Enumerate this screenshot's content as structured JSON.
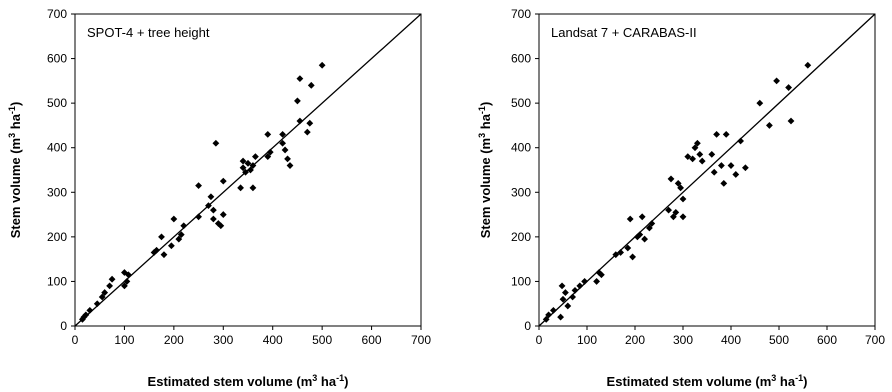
{
  "chart_data": [
    {
      "type": "scatter",
      "title": "SPOT-4 + tree height",
      "xlabel": "Estimated stem volume (m",
      "xlabel_sup": "3",
      "xlabel_tail": " ha",
      "xlabel_sup2": "-1",
      "xlabel_close": ")",
      "ylabel": "Stem volume (m",
      "ylabel_sup": "3",
      "ylabel_tail": " ha",
      "ylabel_sup2": "-1",
      "ylabel_close": ")",
      "xlim": [
        0,
        700
      ],
      "ylim": [
        0,
        700
      ],
      "xticks": [
        "0",
        "100",
        "200",
        "300",
        "400",
        "500",
        "600",
        "700"
      ],
      "yticks": [
        "0",
        "100",
        "200",
        "300",
        "400",
        "500",
        "600",
        "700"
      ],
      "grid": false,
      "reference_line": "1:1",
      "marker": "diamond",
      "marker_color": "#000000",
      "x": [
        15,
        18,
        22,
        30,
        45,
        55,
        60,
        70,
        75,
        100,
        100,
        105,
        108,
        160,
        165,
        175,
        180,
        195,
        200,
        210,
        215,
        220,
        250,
        250,
        270,
        275,
        280,
        280,
        285,
        290,
        295,
        300,
        300,
        335,
        340,
        340,
        345,
        350,
        355,
        360,
        360,
        365,
        390,
        390,
        395,
        420,
        420,
        425,
        430,
        435,
        450,
        455,
        455,
        470,
        475,
        478,
        500
      ],
      "y": [
        15,
        20,
        25,
        35,
        50,
        65,
        75,
        90,
        105,
        90,
        120,
        100,
        115,
        165,
        170,
        200,
        160,
        180,
        240,
        195,
        205,
        225,
        245,
        315,
        270,
        290,
        240,
        260,
        410,
        230,
        225,
        250,
        325,
        310,
        355,
        370,
        345,
        365,
        350,
        360,
        310,
        380,
        380,
        430,
        390,
        430,
        410,
        395,
        375,
        360,
        505,
        555,
        460,
        435,
        455,
        540,
        585
      ]
    },
    {
      "type": "scatter",
      "title": "Landsat 7 + CARABAS-II",
      "xlabel": "Estimated stem volume (m",
      "xlabel_sup": "3",
      "xlabel_tail": " ha",
      "xlabel_sup2": "-1",
      "xlabel_close": ")",
      "ylabel": "Stem volume (m",
      "ylabel_sup": "3",
      "ylabel_tail": " ha",
      "ylabel_sup2": "-1",
      "ylabel_close": ")",
      "xlim": [
        0,
        700
      ],
      "ylim": [
        0,
        700
      ],
      "xticks": [
        "0",
        "100",
        "200",
        "300",
        "400",
        "500",
        "600",
        "700"
      ],
      "yticks": [
        "0",
        "100",
        "200",
        "300",
        "400",
        "500",
        "600",
        "700"
      ],
      "grid": false,
      "reference_line": "1:1",
      "marker": "diamond",
      "marker_color": "#000000",
      "x": [
        15,
        20,
        30,
        45,
        48,
        50,
        55,
        60,
        70,
        75,
        85,
        95,
        120,
        125,
        130,
        160,
        170,
        185,
        190,
        195,
        205,
        210,
        215,
        220,
        230,
        235,
        270,
        275,
        280,
        285,
        290,
        295,
        300,
        300,
        310,
        320,
        325,
        330,
        335,
        340,
        360,
        365,
        370,
        380,
        385,
        390,
        400,
        410,
        420,
        430,
        460,
        480,
        495,
        520,
        525,
        560
      ],
      "y": [
        15,
        25,
        35,
        20,
        90,
        60,
        75,
        45,
        65,
        80,
        90,
        100,
        100,
        120,
        115,
        160,
        165,
        175,
        240,
        155,
        200,
        205,
        245,
        195,
        220,
        230,
        260,
        330,
        245,
        255,
        320,
        310,
        285,
        245,
        380,
        375,
        400,
        410,
        385,
        370,
        385,
        345,
        430,
        360,
        320,
        430,
        360,
        340,
        415,
        355,
        500,
        450,
        550,
        535,
        460,
        585
      ]
    }
  ]
}
